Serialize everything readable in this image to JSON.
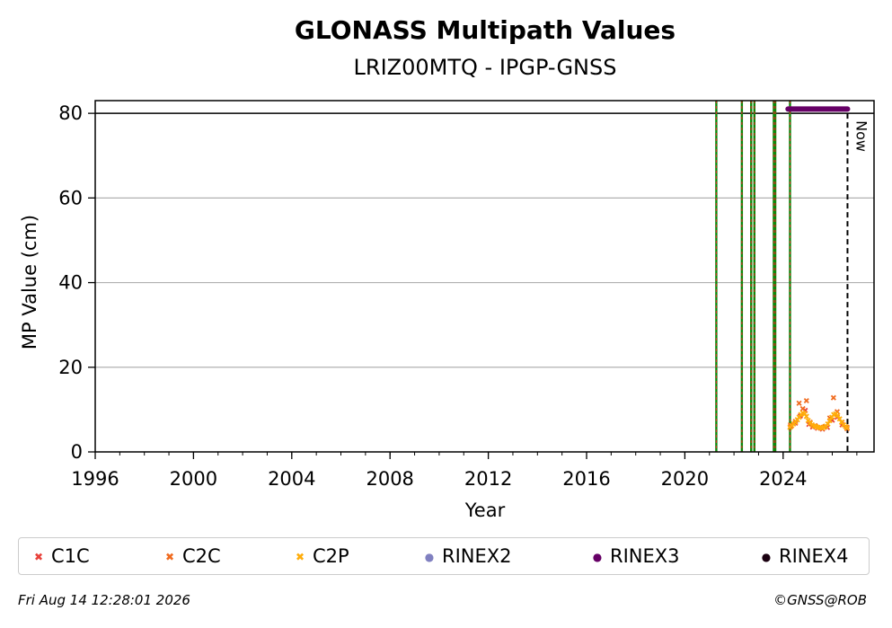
{
  "chart_data": {
    "type": "scatter",
    "title": "GLONASS Multipath Values",
    "subtitle": "LRIZ00MTQ - IPGP-GNSS",
    "xlabel": "Year",
    "ylabel": "MP Value (cm)",
    "xlim": [
      1996,
      2027.7
    ],
    "ylim": [
      0,
      83
    ],
    "x_ticks": [
      1996,
      2000,
      2004,
      2008,
      2012,
      2016,
      2020,
      2024
    ],
    "y_ticks": [
      0,
      20,
      40,
      60,
      80
    ],
    "grid": "horizontal",
    "reference_line": 80,
    "now_x": 2026.62,
    "now_label": "Now",
    "event_lines": [
      2021.28,
      2022.32,
      2022.7,
      2022.83,
      2023.62,
      2023.68,
      2024.28
    ],
    "rinex3_coverage": [
      2024.2,
      2026.62
    ],
    "rinex3_level": 81,
    "series": [
      {
        "name": "C1C",
        "color": "#e8413a",
        "marker": "x",
        "x": [
          2024.3,
          2024.5,
          2024.7,
          2024.9,
          2025.05,
          2025.2,
          2025.4,
          2025.6,
          2025.8,
          2026.0,
          2026.2,
          2026.4,
          2026.6
        ],
        "y": [
          6.0,
          6.8,
          8.5,
          9.8,
          6.5,
          5.9,
          5.6,
          5.4,
          5.8,
          7.5,
          8.2,
          6.4,
          5.5
        ]
      },
      {
        "name": "C2C",
        "color": "#f06a1e",
        "marker": "x",
        "x": [
          2024.3,
          2024.5,
          2024.65,
          2024.8,
          2024.95,
          2025.1,
          2025.3,
          2025.5,
          2025.7,
          2025.9,
          2026.05,
          2026.2,
          2026.4,
          2026.6
        ],
        "y": [
          6.4,
          7.2,
          11.5,
          10.2,
          12.1,
          7.0,
          6.2,
          5.8,
          6.0,
          8.0,
          12.8,
          9.5,
          7.0,
          5.8
        ]
      },
      {
        "name": "C2P",
        "color": "#ffad0a",
        "marker": "x",
        "x": [
          2024.28,
          2024.35,
          2024.42,
          2024.5,
          2024.58,
          2024.65,
          2024.72,
          2024.8,
          2024.88,
          2024.95,
          2025.02,
          2025.1,
          2025.18,
          2025.26,
          2025.34,
          2025.42,
          2025.5,
          2025.58,
          2025.66,
          2025.74,
          2025.82,
          2025.9,
          2025.98,
          2026.06,
          2026.14,
          2026.22,
          2026.3,
          2026.38,
          2026.46,
          2026.54,
          2026.6
        ],
        "y": [
          5.8,
          6.2,
          6.6,
          7.0,
          7.6,
          8.2,
          8.8,
          9.2,
          9.0,
          8.4,
          7.4,
          6.8,
          6.4,
          6.1,
          6.0,
          5.8,
          5.7,
          5.6,
          5.8,
          6.1,
          6.6,
          7.4,
          8.2,
          8.8,
          9.0,
          8.6,
          7.8,
          7.0,
          6.4,
          6.0,
          5.6
        ]
      },
      {
        "name": "RINEX2",
        "color": "#8080c0",
        "marker": "o",
        "x": [],
        "y": []
      },
      {
        "name": "RINEX3",
        "color": "#660066",
        "marker": "o",
        "x": [],
        "y": []
      },
      {
        "name": "RINEX4",
        "color": "#1a0010",
        "marker": "o",
        "x": [],
        "y": []
      }
    ]
  },
  "footer": {
    "timestamp": "Fri Aug 14 12:28:01 2026",
    "credit": "©GNSS@ROB"
  }
}
